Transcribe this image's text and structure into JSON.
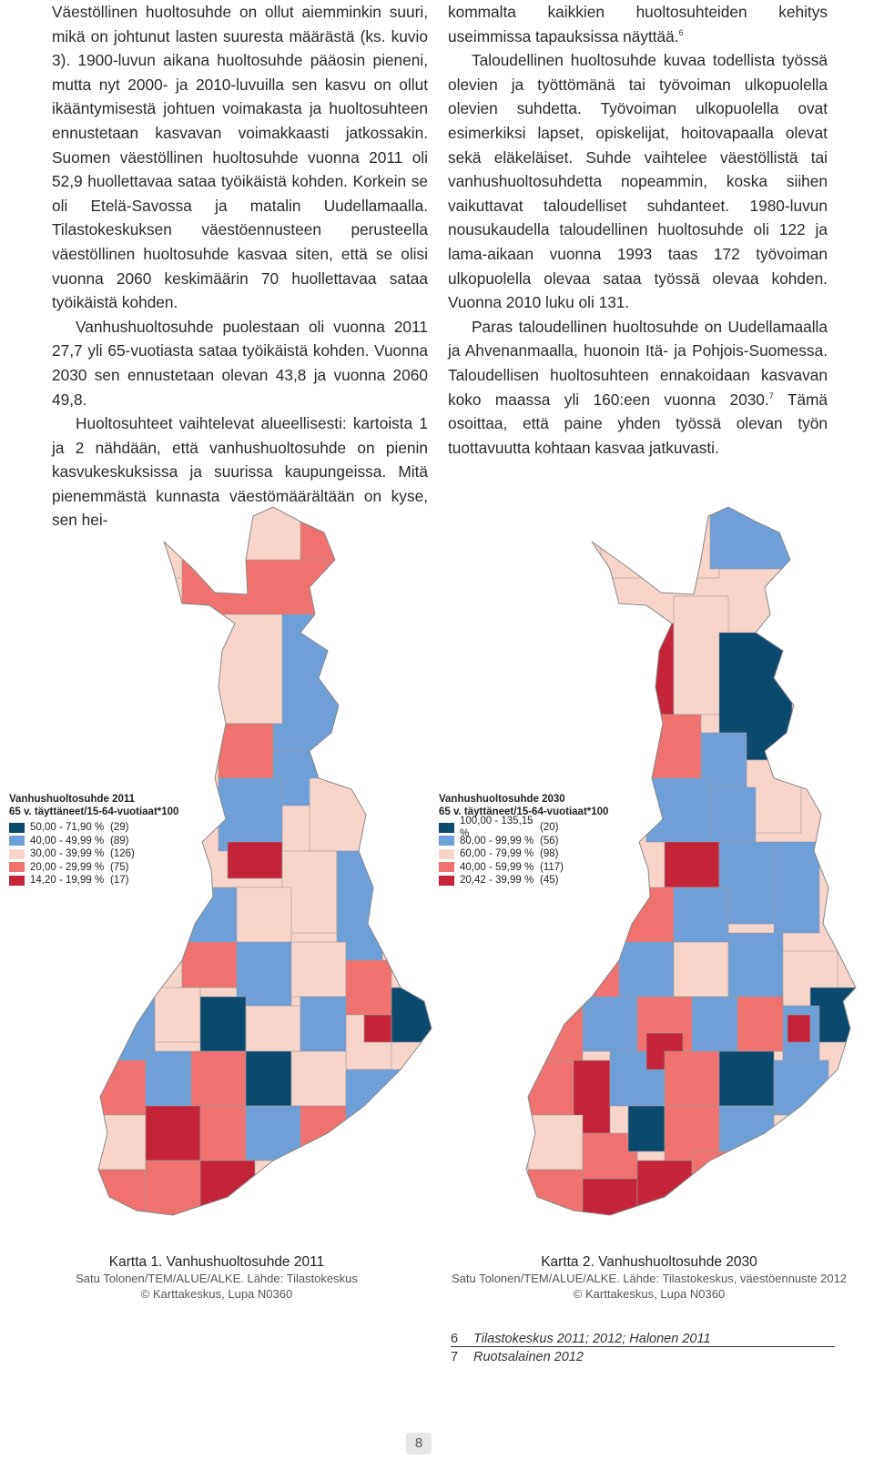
{
  "left_column": {
    "p1": "Väestöllinen huoltosuhde on ollut aiemminkin suuri, mikä on johtunut lasten suuresta määrästä (ks. kuvio 3). 1900-luvun aikana huoltosuhde pääosin pieneni, mutta nyt 2000- ja 2010-luvuilla sen kasvu on ollut ikääntymisestä johtuen voimakasta ja huoltosuhteen ennustetaan kasvavan voimakkaasti jatkossakin. Suomen väestöllinen huoltosuhde vuonna 2011 oli 52,9 huollettavaa sataa työikäistä kohden. Korkein se oli Etelä-Savossa ja matalin Uudellamaalla. Tilastokeskuksen väestöennusteen perusteella väestöllinen huoltosuhde kasvaa siten, että se olisi vuonna 2060 keskimäärin 70 huollettavaa sataa työikäistä kohden.",
    "p2": "Vanhushuoltosuhde puolestaan oli vuonna 2011 27,7 yli 65-vuotiasta sataa työikäistä kohden. Vuonna 2030 sen ennustetaan olevan 43,8 ja vuonna 2060 49,8.",
    "p3": "Huoltosuhteet vaihtelevat alueellisesti: kartoista 1 ja 2 nähdään, että vanhushuoltosuhde on pienin kasvukeskuksissa ja suurissa kaupungeissa. Mitä pienemmästä kunnasta väestömäärältään on kyse, sen hei-"
  },
  "right_column": {
    "p1_text": "kommalta kaikkien huoltosuhteiden kehitys useimmissa tapauksissa näyttää.",
    "p1_ref": "6",
    "p2": "Taloudellinen huoltosuhde kuvaa todellista työssä olevien ja työttömänä tai työvoiman ulkopuolella olevien suhdetta. Työvoiman ulkopuolella ovat esimerkiksi lapset, opiskelijat, hoitovapaalla olevat sekä eläkeläiset. Suhde vaihtelee väestöllistä tai vanhushuoltosuhdetta nopeammin, koska siihen vaikuttavat taloudelliset suhdanteet. 1980-luvun nousukaudella taloudellinen huoltosuhde oli 122 ja lama-aikaan vuonna 1993 taas 172 työvoiman ulkopuolella olevaa sataa työssä olevaa kohden. Vuonna 2010 luku oli 131.",
    "p3_text": "Paras taloudellinen huoltosuhde on Uudellamaalla ja Ahvenanmaalla, huonoin Itä- ja Pohjois-Suomessa. Taloudellisen huoltosuhteen ennakoidaan kasvavan koko maassa yli 160:een vuonna 2030.",
    "p3_ref": "7",
    "p3_tail": " Tämä osoittaa, että paine yhden työssä olevan työn tuottavuutta kohtaan kasvaa jatkuvasti."
  },
  "map1": {
    "legend_title1": "Vanhushuoltosuhde 2011",
    "legend_title2": "65 v. täyttäneet/15-64-vuotiaat*100",
    "classes": [
      {
        "range": "50,00 - 71,90 %",
        "count": "(29)",
        "color": "#0b4a6f"
      },
      {
        "range": "40,00 - 49,99 %",
        "count": "(89)",
        "color": "#6f9fd8"
      },
      {
        "range": "30,00 - 39,99 %",
        "count": "(126)",
        "color": "#f8d5cb"
      },
      {
        "range": "20,00 - 29,99 %",
        "count": "(75)",
        "color": "#ef7270"
      },
      {
        "range": "14,20 - 19,99 %",
        "count": "(17)",
        "color": "#c4243a"
      }
    ],
    "caption_title": "Kartta  1. Vanhushuoltosuhde 2011",
    "caption_source": "Satu Tolonen/TEM/ALUE/ALKE. Lähde: Tilastokeskus",
    "caption_copy": "© Karttakeskus, Lupa N0360"
  },
  "map2": {
    "legend_title1": "Vanhushuoltosuhde 2030",
    "legend_title2": "65 v. täyttäneet/15-64-vuotiaat*100",
    "classes": [
      {
        "range": "100,00 - 135,15 %",
        "count": "(20)",
        "color": "#0b4a6f"
      },
      {
        "range": "80,00 - 99,99 %",
        "count": "(56)",
        "color": "#6f9fd8"
      },
      {
        "range": "60,00 - 79,99 %",
        "count": "(98)",
        "color": "#f8d5cb"
      },
      {
        "range": "40,00 - 59,99 %",
        "count": "(117)",
        "color": "#ef7270"
      },
      {
        "range": "20,42 - 39,99 %",
        "count": "(45)",
        "color": "#c4243a"
      }
    ],
    "caption_title": "Kartta  2. Vanhushuoltosuhde 2030",
    "caption_source": "Satu Tolonen/TEM/ALUE/ALKE. Lähde: Tilastokeskus, väestöennuste 2012",
    "caption_copy": "© Karttakeskus, Lupa N0360"
  },
  "footnotes": [
    {
      "num": "6",
      "text": "Tilastokeskus 2011; 2012; Halonen 2011"
    },
    {
      "num": "7",
      "text": "Ruotsalainen 2012"
    }
  ],
  "page_number": "8"
}
